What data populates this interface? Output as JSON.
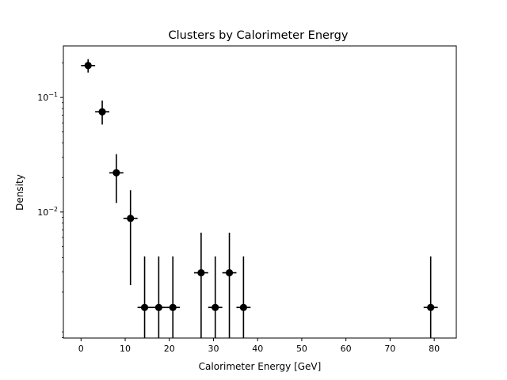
{
  "chart_data": {
    "type": "scatter",
    "title": "Clusters by Calorimeter Energy",
    "xlabel": "Calorimeter Energy [GeV]",
    "ylabel": "Density",
    "xlim": [
      -4,
      85
    ],
    "ylim_log10": [
      -3.1,
      -0.55
    ],
    "y_scale": "log",
    "grid": false,
    "xticks": [
      0,
      10,
      20,
      30,
      40,
      50,
      60,
      70,
      80
    ],
    "yticks": [
      {
        "value": 0.1,
        "base": "10",
        "exp": "−1"
      },
      {
        "value": 0.01,
        "base": "10",
        "exp": "−2"
      }
    ],
    "marker_color": "#000000",
    "points": [
      {
        "x": 1.6,
        "y": 0.19,
        "xerr": 1.6,
        "ylo": 0.165,
        "yhi": 0.216
      },
      {
        "x": 4.8,
        "y": 0.075,
        "xerr": 1.6,
        "ylo": 0.058,
        "yhi": 0.094
      },
      {
        "x": 8.0,
        "y": 0.022,
        "xerr": 1.6,
        "ylo": 0.012,
        "yhi": 0.032
      },
      {
        "x": 11.2,
        "y": 0.0088,
        "xerr": 1.6,
        "ylo": 0.0023,
        "yhi": 0.0155
      },
      {
        "x": 14.4,
        "y": 0.00147,
        "xerr": 1.6,
        "ylo": 0.0005,
        "yhi": 0.0041
      },
      {
        "x": 17.6,
        "y": 0.00147,
        "xerr": 1.6,
        "ylo": 0.0005,
        "yhi": 0.0041
      },
      {
        "x": 20.8,
        "y": 0.00147,
        "xerr": 1.6,
        "ylo": 0.0005,
        "yhi": 0.0041
      },
      {
        "x": 27.2,
        "y": 0.00295,
        "xerr": 1.6,
        "ylo": 0.0005,
        "yhi": 0.0066
      },
      {
        "x": 30.4,
        "y": 0.00147,
        "xerr": 1.6,
        "ylo": 0.0005,
        "yhi": 0.0041
      },
      {
        "x": 33.6,
        "y": 0.00295,
        "xerr": 1.6,
        "ylo": 0.0005,
        "yhi": 0.0066
      },
      {
        "x": 36.8,
        "y": 0.00147,
        "xerr": 1.6,
        "ylo": 0.0005,
        "yhi": 0.0041
      },
      {
        "x": 79.2,
        "y": 0.00147,
        "xerr": 1.6,
        "ylo": 0.0005,
        "yhi": 0.0041
      }
    ]
  }
}
